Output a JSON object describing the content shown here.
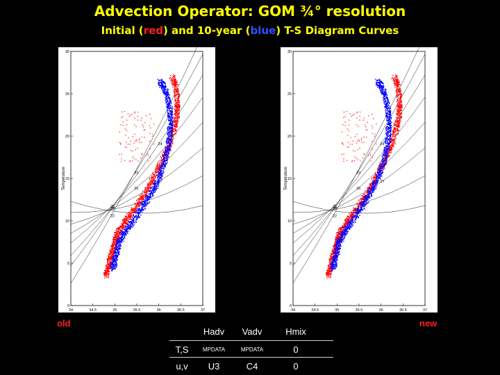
{
  "header": {
    "title": "Advection Operator: GOM ¾° resolution",
    "subtitle_prefix": "Initial (",
    "subtitle_red": "red",
    "subtitle_mid": ") and 10-year (",
    "subtitle_blue": "blue",
    "subtitle_suffix": ") T-S Diagram Curves"
  },
  "labels": {
    "left": "old",
    "right": "new"
  },
  "table": {
    "headers": [
      "Hadv",
      "Vadv",
      "Hmix"
    ],
    "rows": [
      {
        "label": "T,S",
        "cells": [
          "MPDATA",
          "MPDATA",
          "0"
        ]
      },
      {
        "label": "u,v",
        "cells": [
          "U3",
          "C4",
          "0"
        ]
      }
    ]
  },
  "chart_data": [
    {
      "type": "scatter",
      "panel": "old",
      "ylabel": "Temperature",
      "x_ticks": [
        "34",
        "34.5",
        "35",
        "35.5",
        "36",
        "36.5",
        "37"
      ],
      "y_ticks": [
        "0",
        "5",
        "10",
        "15",
        "20",
        "25",
        "30"
      ],
      "xlim": [
        34,
        37
      ],
      "ylim": [
        0,
        30
      ],
      "isopycnal_labels": [
        "22",
        "23",
        "24",
        "25",
        "26",
        "27",
        "28"
      ],
      "series": [
        {
          "color": "#ff0000",
          "points": [
            [
              34.8,
              3.5
            ],
            [
              34.85,
              4.5
            ],
            [
              34.9,
              5.5
            ],
            [
              34.95,
              6.5
            ],
            [
              35.0,
              7.5
            ],
            [
              35.05,
              8.3
            ],
            [
              35.15,
              9.3
            ],
            [
              35.3,
              10.3
            ],
            [
              35.45,
              11.4
            ],
            [
              35.6,
              12.5
            ],
            [
              35.75,
              13.8
            ],
            [
              35.9,
              15.2
            ],
            [
              36.05,
              16.8
            ],
            [
              36.2,
              18.4
            ],
            [
              36.3,
              20.0
            ],
            [
              36.38,
              21.5
            ],
            [
              36.42,
              23.0
            ],
            [
              36.42,
              24.5
            ],
            [
              36.38,
              26.0
            ],
            [
              36.3,
              27.0
            ]
          ]
        },
        {
          "color": "#0000ff",
          "points": [
            [
              34.95,
              4.3
            ],
            [
              35.0,
              5.3
            ],
            [
              35.05,
              6.4
            ],
            [
              35.1,
              7.5
            ],
            [
              35.2,
              8.5
            ],
            [
              35.35,
              9.5
            ],
            [
              35.5,
              10.6
            ],
            [
              35.65,
              11.8
            ],
            [
              35.8,
              13.0
            ],
            [
              35.95,
              14.3
            ],
            [
              36.05,
              15.7
            ],
            [
              36.15,
              17.3
            ],
            [
              36.22,
              18.8
            ],
            [
              36.25,
              20.3
            ],
            [
              36.27,
              21.8
            ],
            [
              36.25,
              23.2
            ],
            [
              36.2,
              24.6
            ],
            [
              36.12,
              25.8
            ],
            [
              36.02,
              26.5
            ]
          ]
        }
      ]
    },
    {
      "type": "scatter",
      "panel": "new",
      "ylabel": "Temperature",
      "x_ticks": [
        "34",
        "34.5",
        "35",
        "35.5",
        "36",
        "36.5",
        "37"
      ],
      "y_ticks": [
        "0",
        "5",
        "10",
        "15",
        "20",
        "25",
        "30"
      ],
      "xlim": [
        34,
        37
      ],
      "ylim": [
        0,
        30
      ],
      "isopycnal_labels": [
        "22",
        "23",
        "24",
        "25",
        "26",
        "27",
        "28"
      ],
      "series": [
        {
          "color": "#ff0000",
          "points": [
            [
              34.8,
              3.5
            ],
            [
              34.85,
              4.5
            ],
            [
              34.9,
              5.5
            ],
            [
              34.95,
              6.5
            ],
            [
              35.0,
              7.5
            ],
            [
              35.05,
              8.3
            ],
            [
              35.15,
              9.3
            ],
            [
              35.3,
              10.3
            ],
            [
              35.45,
              11.4
            ],
            [
              35.6,
              12.5
            ],
            [
              35.75,
              13.8
            ],
            [
              35.9,
              15.2
            ],
            [
              36.05,
              16.8
            ],
            [
              36.2,
              18.4
            ],
            [
              36.3,
              20.0
            ],
            [
              36.38,
              21.5
            ],
            [
              36.42,
              23.0
            ],
            [
              36.42,
              24.5
            ],
            [
              36.38,
              26.0
            ],
            [
              36.3,
              27.0
            ]
          ]
        },
        {
          "color": "#0000ff",
          "points": [
            [
              34.9,
              4.3
            ],
            [
              34.95,
              5.3
            ],
            [
              35.0,
              6.4
            ],
            [
              35.05,
              7.5
            ],
            [
              35.15,
              8.5
            ],
            [
              35.28,
              9.5
            ],
            [
              35.42,
              10.6
            ],
            [
              35.58,
              11.8
            ],
            [
              35.72,
              13.0
            ],
            [
              35.86,
              14.3
            ],
            [
              35.98,
              15.7
            ],
            [
              36.08,
              17.3
            ],
            [
              36.14,
              18.8
            ],
            [
              36.17,
              20.3
            ],
            [
              36.18,
              21.8
            ],
            [
              36.16,
              23.2
            ],
            [
              36.1,
              24.6
            ],
            [
              36.02,
              25.8
            ],
            [
              35.92,
              26.5
            ]
          ]
        }
      ]
    }
  ]
}
